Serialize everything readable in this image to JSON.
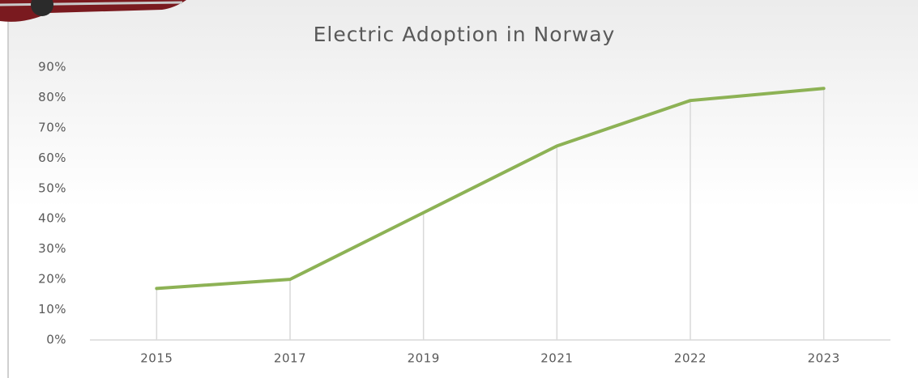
{
  "chart_data": {
    "type": "line",
    "title": "Electric Adoption in Norway",
    "categories": [
      "2015",
      "2017",
      "2019",
      "2021",
      "2022",
      "2023"
    ],
    "values": [
      17,
      20,
      42,
      64,
      79,
      83
    ],
    "color": "#8db255",
    "drop_lines": true,
    "ylim": [
      0,
      90
    ],
    "yticks": [
      {
        "value": 0,
        "label": "0%"
      },
      {
        "value": 10,
        "label": "10%"
      },
      {
        "value": 20,
        "label": "20%"
      },
      {
        "value": 30,
        "label": "30%"
      },
      {
        "value": 40,
        "label": "40%"
      },
      {
        "value": 50,
        "label": "50%"
      },
      {
        "value": 60,
        "label": "60%"
      },
      {
        "value": 70,
        "label": "70%"
      },
      {
        "value": 80,
        "label": "80%"
      },
      {
        "value": 90,
        "label": "90%"
      }
    ]
  }
}
